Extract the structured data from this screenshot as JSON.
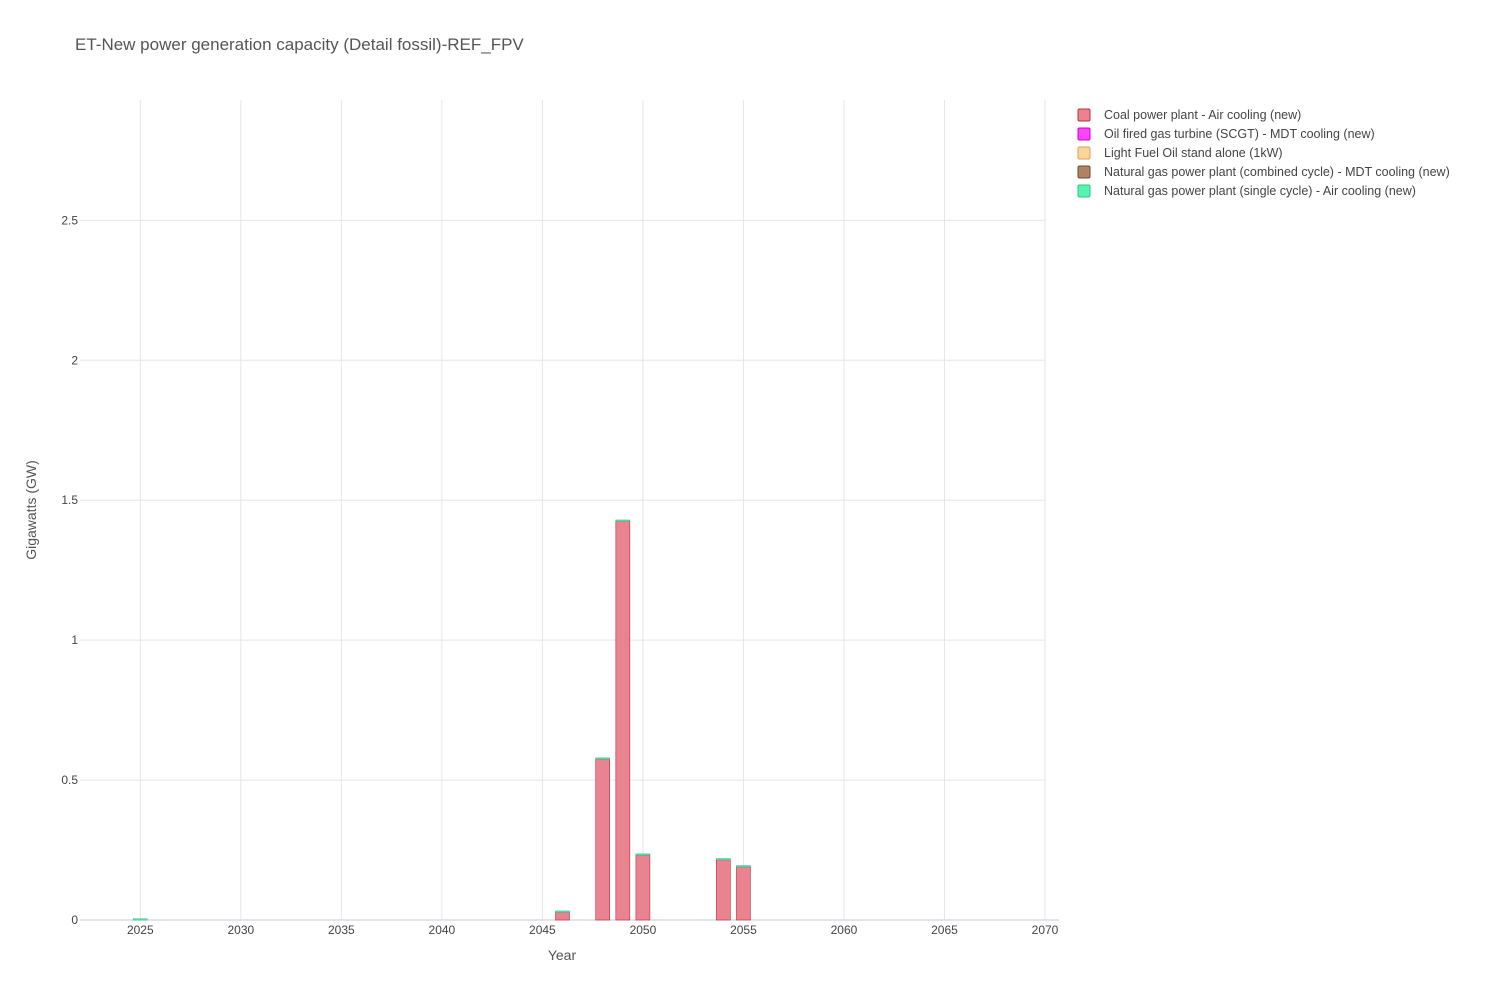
{
  "chart_data": {
    "type": "bar",
    "stacked": true,
    "title": "ET-New power generation capacity (Detail fossil)-REF_FPV",
    "xlabel": "Year",
    "ylabel": "Gigawatts (GW)",
    "xlim": [
      2022,
      2070
    ],
    "ylim": [
      0,
      2.93
    ],
    "x_ticks": [
      2025,
      2030,
      2035,
      2040,
      2045,
      2050,
      2055,
      2060,
      2065,
      2070
    ],
    "x_tick_labels": [
      "2025",
      "2030",
      "2035",
      "2040",
      "2045",
      "2050",
      "2055",
      "2060",
      "2065",
      "2070"
    ],
    "y_ticks": [
      0,
      0.5,
      1,
      1.5,
      2,
      2.5
    ],
    "y_tick_labels": [
      "0",
      "0.5",
      "1",
      "1.5",
      "2",
      "2.5"
    ],
    "grid": true,
    "legend_position": "right-top",
    "years": [
      2025,
      2046,
      2048,
      2049,
      2050,
      2054,
      2055
    ],
    "series": [
      {
        "name": "Coal power plant - Air cooling (new)",
        "color": "#e8838f",
        "stroke": "#c0303f",
        "values": [
          0,
          0.028,
          0.575,
          1.425,
          0.232,
          0.215,
          0.19
        ]
      },
      {
        "name": "Oil fired gas turbine (SCGT) - MDT cooling (new)",
        "color": "#ff44ff",
        "stroke": "#cc00cc",
        "values": [
          0,
          0,
          0,
          0,
          0,
          0,
          0
        ]
      },
      {
        "name": "Light Fuel Oil stand alone (1kW)",
        "color": "#fdd59a",
        "stroke": "#e0a050",
        "values": [
          0,
          0,
          0,
          0,
          0,
          0,
          0
        ]
      },
      {
        "name": "Natural gas power plant (combined cycle) - MDT cooling (new)",
        "color": "#b08360",
        "stroke": "#6e4a2e",
        "values": [
          0,
          0,
          0,
          0,
          0,
          0,
          0
        ]
      },
      {
        "name": "Natural gas power plant (single cycle) - Air cooling (new)",
        "color": "#55f5b0",
        "stroke": "#2ec28a",
        "values": [
          0.003,
          0.003,
          0.004,
          0.004,
          0.004,
          0.004,
          0.004
        ]
      }
    ]
  }
}
